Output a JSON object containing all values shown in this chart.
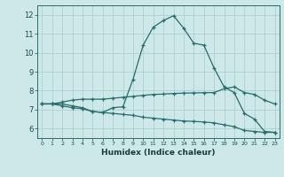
{
  "xlabel": "Humidex (Indice chaleur)",
  "bg_color": "#cce8e8",
  "grid_color": "#aacccc",
  "line_color": "#2a6b6b",
  "xlim": [
    -0.5,
    23.5
  ],
  "ylim": [
    5.5,
    12.5
  ],
  "xticks": [
    0,
    1,
    2,
    3,
    4,
    5,
    6,
    7,
    8,
    9,
    10,
    11,
    12,
    13,
    14,
    15,
    16,
    17,
    18,
    19,
    20,
    21,
    22,
    23
  ],
  "yticks": [
    6,
    7,
    8,
    9,
    10,
    11,
    12
  ],
  "curve1_x": [
    0,
    1,
    2,
    3,
    4,
    5,
    6,
    7,
    8,
    9,
    10,
    11,
    12,
    13,
    14,
    15,
    16,
    17,
    18,
    19,
    20,
    21,
    22,
    23
  ],
  "curve1_y": [
    7.3,
    7.3,
    7.3,
    7.2,
    7.1,
    6.9,
    6.85,
    7.1,
    7.15,
    8.6,
    10.4,
    11.35,
    11.7,
    11.95,
    11.3,
    10.5,
    10.4,
    9.2,
    8.2,
    7.9,
    6.8,
    6.5,
    5.85,
    5.8
  ],
  "curve2_x": [
    0,
    1,
    2,
    3,
    4,
    5,
    6,
    7,
    8,
    9,
    10,
    11,
    12,
    13,
    14,
    15,
    16,
    17,
    18,
    19,
    20,
    21,
    22,
    23
  ],
  "curve2_y": [
    7.3,
    7.3,
    7.4,
    7.5,
    7.55,
    7.55,
    7.55,
    7.6,
    7.65,
    7.7,
    7.75,
    7.8,
    7.82,
    7.85,
    7.87,
    7.88,
    7.89,
    7.9,
    8.1,
    8.2,
    7.9,
    7.8,
    7.5,
    7.3
  ],
  "curve3_x": [
    0,
    1,
    2,
    3,
    4,
    5,
    6,
    7,
    8,
    9,
    10,
    11,
    12,
    13,
    14,
    15,
    16,
    17,
    18,
    19,
    20,
    21,
    22,
    23
  ],
  "curve3_y": [
    7.3,
    7.3,
    7.2,
    7.1,
    7.05,
    6.9,
    6.85,
    6.8,
    6.75,
    6.7,
    6.6,
    6.55,
    6.5,
    6.45,
    6.4,
    6.38,
    6.35,
    6.3,
    6.2,
    6.1,
    5.9,
    5.85,
    5.8,
    5.8
  ]
}
